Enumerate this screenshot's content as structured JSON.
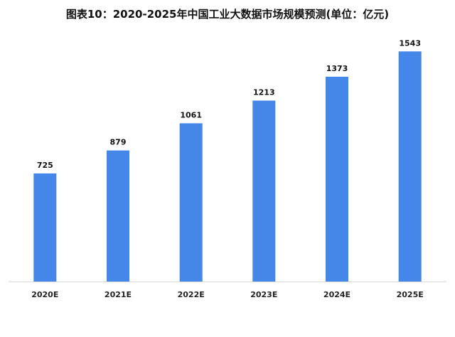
{
  "chart_data": {
    "type": "bar",
    "title": "图表10：2020-2025年中国工业大数据市场规模预测(单位：亿元)",
    "categories": [
      "2020E",
      "2021E",
      "2022E",
      "2023E",
      "2024E",
      "2025E"
    ],
    "values": [
      725,
      879,
      1061,
      1213,
      1373,
      1543
    ],
    "data_labels": [
      "725",
      "879",
      "1061",
      "1213",
      "1373",
      "1543"
    ],
    "xlabel": "",
    "ylabel": "",
    "ylim": [
      0,
      1700
    ],
    "grid": false,
    "legend": "none",
    "bar_color": "#4587E8",
    "axis_color": "#D9D9D9"
  }
}
